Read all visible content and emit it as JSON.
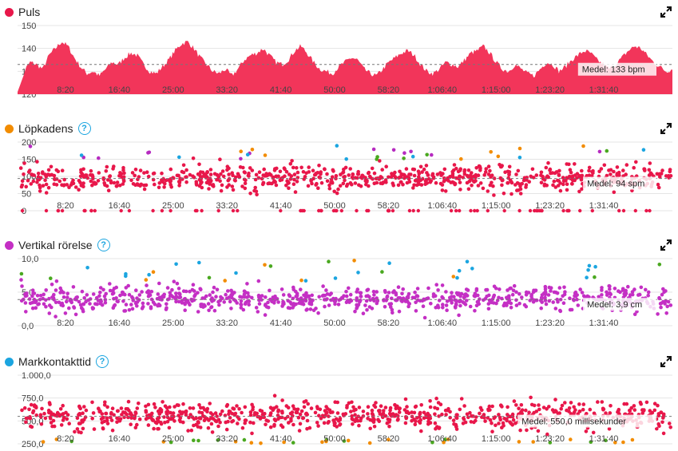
{
  "panels": [
    {
      "id": "puls",
      "title": "Puls",
      "dot_color": "#e8174a",
      "help": false,
      "average_label": "Medel: 133 bpm",
      "chart_data": {
        "type": "area",
        "yticks": [
          "150",
          "140",
          "130",
          "120"
        ],
        "ylim": [
          120,
          150
        ],
        "average": 133,
        "xlabels": [
          "8:20",
          "16:40",
          "25:00",
          "33:20",
          "41:40",
          "50:00",
          "58:20",
          "1:06:40",
          "1:15:00",
          "1:23:20",
          "1:31:40"
        ],
        "xlim_seconds": [
          0,
          5990
        ],
        "series_color": "#f2355a",
        "profile": [
          128,
          130,
          134,
          133,
          131,
          137,
          140,
          143,
          141,
          136,
          132,
          129,
          130,
          128,
          131,
          134,
          133,
          136,
          138,
          137,
          133,
          130,
          129,
          132,
          135,
          139,
          142,
          143,
          140,
          136,
          133,
          130,
          129,
          131,
          128,
          131,
          135,
          137,
          138,
          140,
          137,
          134,
          133,
          135,
          139,
          141,
          138,
          134,
          131,
          130,
          129,
          132,
          134,
          136,
          135,
          131,
          129,
          128,
          131,
          134,
          136,
          138,
          139,
          137,
          133,
          130,
          129,
          131,
          134,
          133,
          132,
          135,
          138,
          139,
          141,
          138,
          134,
          131,
          130,
          133,
          131,
          129,
          128,
          131,
          134,
          133,
          130,
          132,
          135,
          137,
          139,
          138,
          135,
          133,
          131,
          133,
          136,
          139,
          141,
          140,
          137,
          134,
          132,
          130,
          131
        ]
      }
    },
    {
      "id": "kadens",
      "title": "Löpkadens",
      "dot_color": "#f28c00",
      "help": true,
      "average_label": "Medel: 94 spm",
      "chart_data": {
        "type": "scatter",
        "yticks": [
          "200",
          "150",
          "100",
          "50",
          "0"
        ],
        "ylim": [
          0,
          200
        ],
        "average": 94,
        "xlabels": [
          "8:20",
          "16:40",
          "25:00",
          "33:20",
          "41:40",
          "50:00",
          "58:20",
          "1:06:40",
          "1:15:00",
          "1:23:20",
          "1:31:40"
        ],
        "main_color": "#e8174a",
        "main_mean": 95,
        "main_spread": 26,
        "extra_colors": [
          "#f28c00",
          "#4aa820",
          "#1ba5e0",
          "#b62bc0"
        ],
        "extra_range": [
          150,
          190
        ],
        "zero_band": true
      }
    },
    {
      "id": "vertikal",
      "title": "Vertikal rörelse",
      "dot_color": "#c42fc4",
      "help": true,
      "average_label": "Medel: 3,9 cm",
      "chart_data": {
        "type": "scatter",
        "yticks": [
          "10,0",
          "5,0",
          "0,0"
        ],
        "ylim": [
          0,
          10
        ],
        "average": 3.9,
        "xlabels": [
          "8:20",
          "16:40",
          "25:00",
          "33:20",
          "41:40",
          "50:00",
          "58:20",
          "1:06:40",
          "1:15:00",
          "1:23:20",
          "1:31:40"
        ],
        "main_color": "#c42fc4",
        "main_mean": 4.0,
        "main_spread": 1.4,
        "extra_colors": [
          "#1ba5e0",
          "#1ba5e0",
          "#4aa820",
          "#f28c00"
        ],
        "extra_range": [
          6.5,
          9.8
        ],
        "zero_band": false
      }
    },
    {
      "id": "markkontakt",
      "title": "Markkontakttid",
      "dot_color": "#1ba5e0",
      "help": true,
      "average_label": "Medel: 550,0 millisekunder",
      "chart_data": {
        "type": "scatter",
        "yticks": [
          "1.000,0",
          "750,0",
          "500,0",
          "250,0"
        ],
        "ylim": [
          250,
          1000
        ],
        "average": 550,
        "xlabels": [
          "8:20",
          "16:40",
          "25:00",
          "33:20",
          "41:40",
          "50:00",
          "58:20",
          "1:06:40",
          "1:15:00",
          "1:23:20",
          "1:31:40"
        ],
        "main_color": "#e8174a",
        "main_mean": 560,
        "main_spread": 110,
        "extra_colors": [
          "#f28c00",
          "#4aa820"
        ],
        "extra_range": [
          255,
          300
        ],
        "zero_band": false
      }
    }
  ]
}
